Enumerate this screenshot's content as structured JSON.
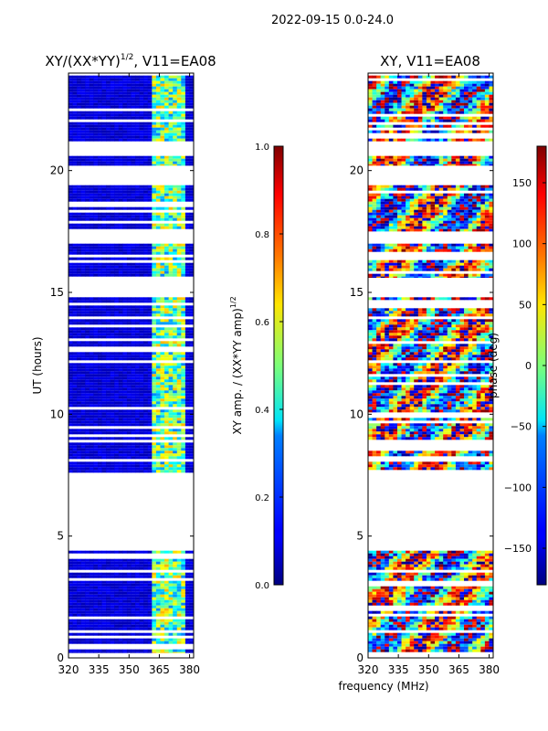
{
  "figure": {
    "suptitle": "2022-09-15 0.0-24.0",
    "xlabel": "frequency (MHz)"
  },
  "chart_data": [
    {
      "type": "heatmap",
      "title": "XY/(XX*YY)",
      "title_exponent": "1/2",
      "title_suffix": ", V11=EA08",
      "ylabel": "UT (hours)",
      "x_ticks": [
        "320",
        "335",
        "350",
        "365",
        "380"
      ],
      "y_ticks": [
        "0",
        "5",
        "10",
        "15",
        "20"
      ],
      "xlim": [
        320,
        382
      ],
      "ylim": [
        0,
        24
      ],
      "colormap": "jet",
      "data_blocks_hours": [
        [
          0.2,
          4.4
        ],
        [
          7.6,
          14.8
        ],
        [
          15.6,
          17.0
        ],
        [
          17.5,
          19.4
        ],
        [
          20.2,
          20.6
        ],
        [
          21.2,
          23.9
        ]
      ],
      "rfi_band_mhz": [
        362,
        377
      ],
      "colorbar": {
        "label": "XY amp. / (XX*YY amp)",
        "label_exponent": "1/2",
        "ticks": [
          "0.0",
          "0.2",
          "0.4",
          "0.6",
          "0.8",
          "1.0"
        ],
        "range": [
          0.0,
          1.0
        ]
      }
    },
    {
      "type": "heatmap",
      "title": "XY, V11=EA08",
      "x_ticks": [
        "320",
        "335",
        "350",
        "365",
        "380"
      ],
      "y_ticks": [
        "0",
        "5",
        "10",
        "15",
        "20"
      ],
      "xlim": [
        320,
        382
      ],
      "ylim": [
        0,
        24
      ],
      "colormap": "jet",
      "data_blocks_hours": [
        [
          0.2,
          4.4
        ],
        [
          7.6,
          14.8
        ],
        [
          15.6,
          17.0
        ],
        [
          17.5,
          19.4
        ],
        [
          20.2,
          20.6
        ],
        [
          21.2,
          23.9
        ]
      ],
      "colorbar": {
        "label": "phase (deg)",
        "ticks": [
          "150",
          "100",
          "50",
          "0",
          "−50",
          "−100",
          "−150"
        ],
        "tick_values": [
          150,
          100,
          50,
          0,
          -50,
          -100,
          -150
        ],
        "range": [
          -180,
          180
        ]
      }
    }
  ]
}
